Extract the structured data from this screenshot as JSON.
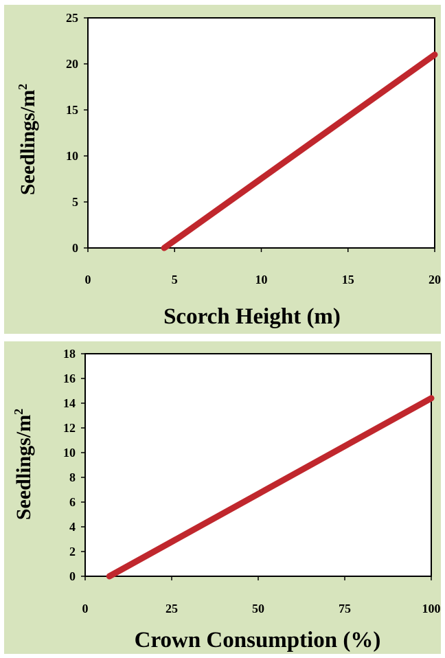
{
  "chart_data": [
    {
      "type": "line",
      "xlabel": "Scorch Height (m)",
      "ylabel_base": "Seedlings/m",
      "ylabel_sup": "2",
      "xlim": [
        0,
        20
      ],
      "ylim": [
        0,
        25
      ],
      "x_ticks": [
        "0",
        "5",
        "10",
        "15",
        "20"
      ],
      "y_ticks": [
        "0",
        "5",
        "10",
        "15",
        "20",
        "25"
      ],
      "series": [
        {
          "x": [
            4.4,
            20
          ],
          "y": [
            0,
            21
          ]
        }
      ],
      "grid": false,
      "line_color": "#c0272d",
      "panel_background": "#d7e4bd",
      "plot_background": "#ffffff"
    },
    {
      "type": "line",
      "xlabel": "Crown Consumption (%)",
      "ylabel_base": "Seedlings/m",
      "ylabel_sup": "2",
      "xlim": [
        0,
        100
      ],
      "ylim": [
        0,
        18
      ],
      "x_ticks": [
        "0",
        "25",
        "50",
        "75",
        "100"
      ],
      "y_ticks": [
        "0",
        "2",
        "4",
        "6",
        "8",
        "10",
        "12",
        "14",
        "16",
        "18"
      ],
      "series": [
        {
          "x": [
            7,
            100
          ],
          "y": [
            0,
            14.4
          ]
        }
      ],
      "grid": false,
      "line_color": "#c0272d",
      "panel_background": "#d7e4bd",
      "plot_background": "#ffffff"
    }
  ]
}
